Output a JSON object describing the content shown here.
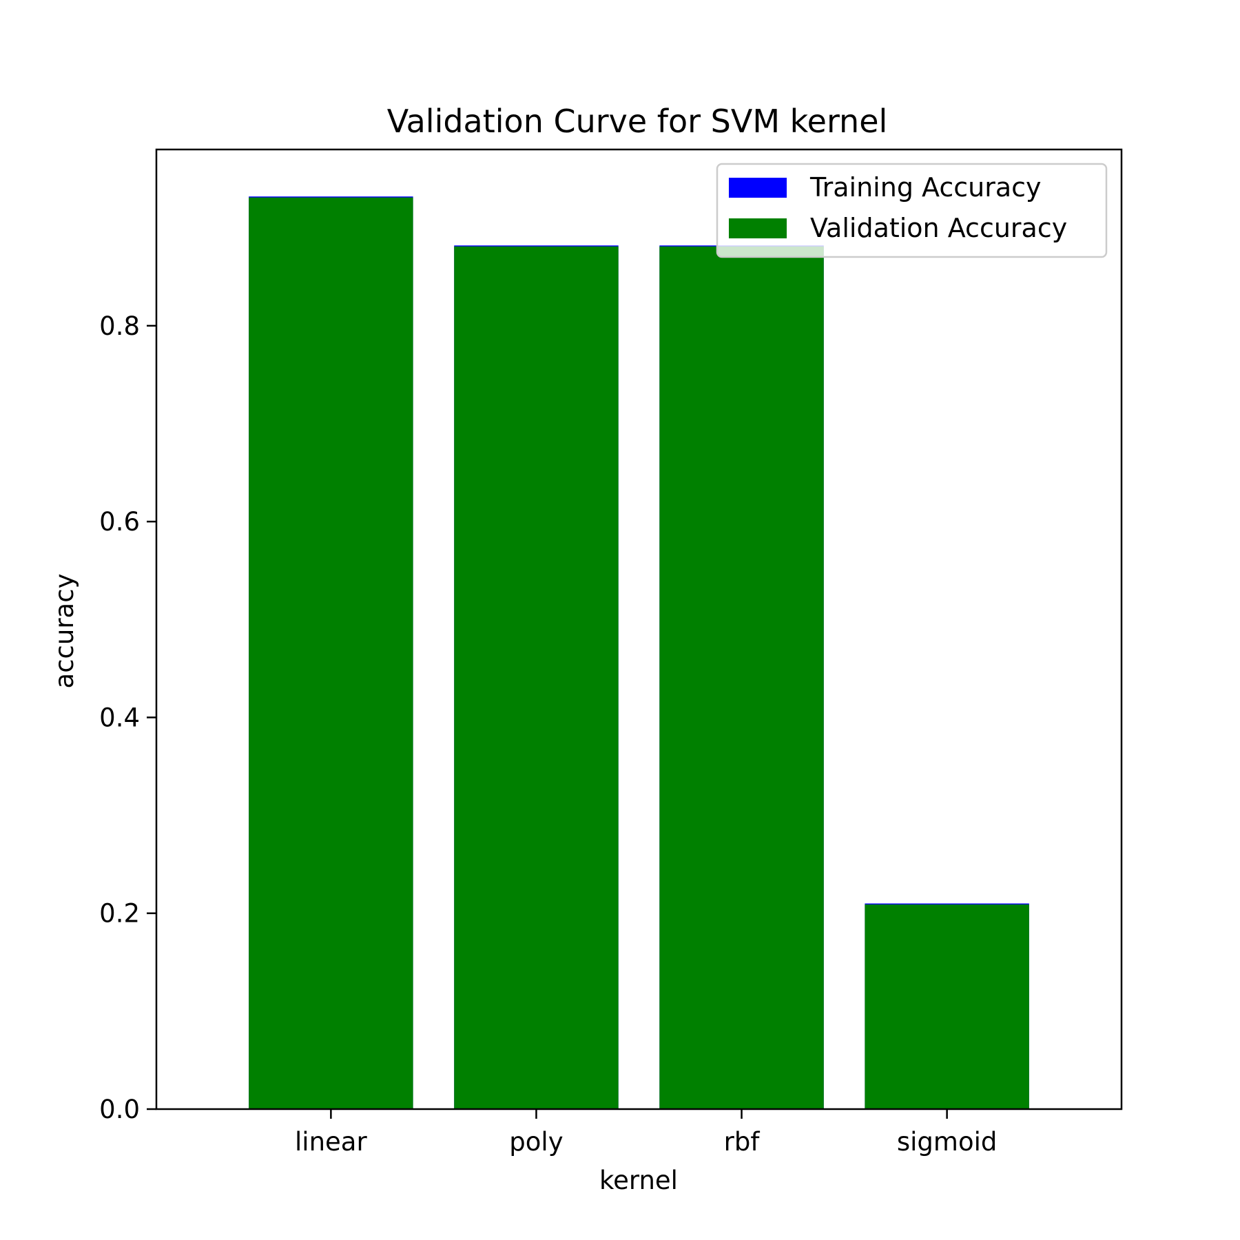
{
  "chart_data": {
    "type": "bar",
    "title": "Validation Curve for SVM kernel",
    "xlabel": "kernel",
    "ylabel": "accuracy",
    "categories": [
      "linear",
      "poly",
      "rbf",
      "sigmoid"
    ],
    "series": [
      {
        "name": "Training Accuracy",
        "color": "#0000ff",
        "values": [
          0.932,
          0.882,
          0.882,
          0.21
        ]
      },
      {
        "name": "Validation Accuracy",
        "color": "#008000",
        "values": [
          0.931,
          0.881,
          0.881,
          0.209
        ]
      }
    ],
    "ylim": [
      0,
      0.98
    ],
    "yticks": [
      0.0,
      0.2,
      0.4,
      0.6,
      0.8
    ],
    "ytick_labels": [
      "0.0",
      "0.2",
      "0.4",
      "0.6",
      "0.8"
    ],
    "legend": {
      "position": "top-right"
    },
    "grid": false
  }
}
